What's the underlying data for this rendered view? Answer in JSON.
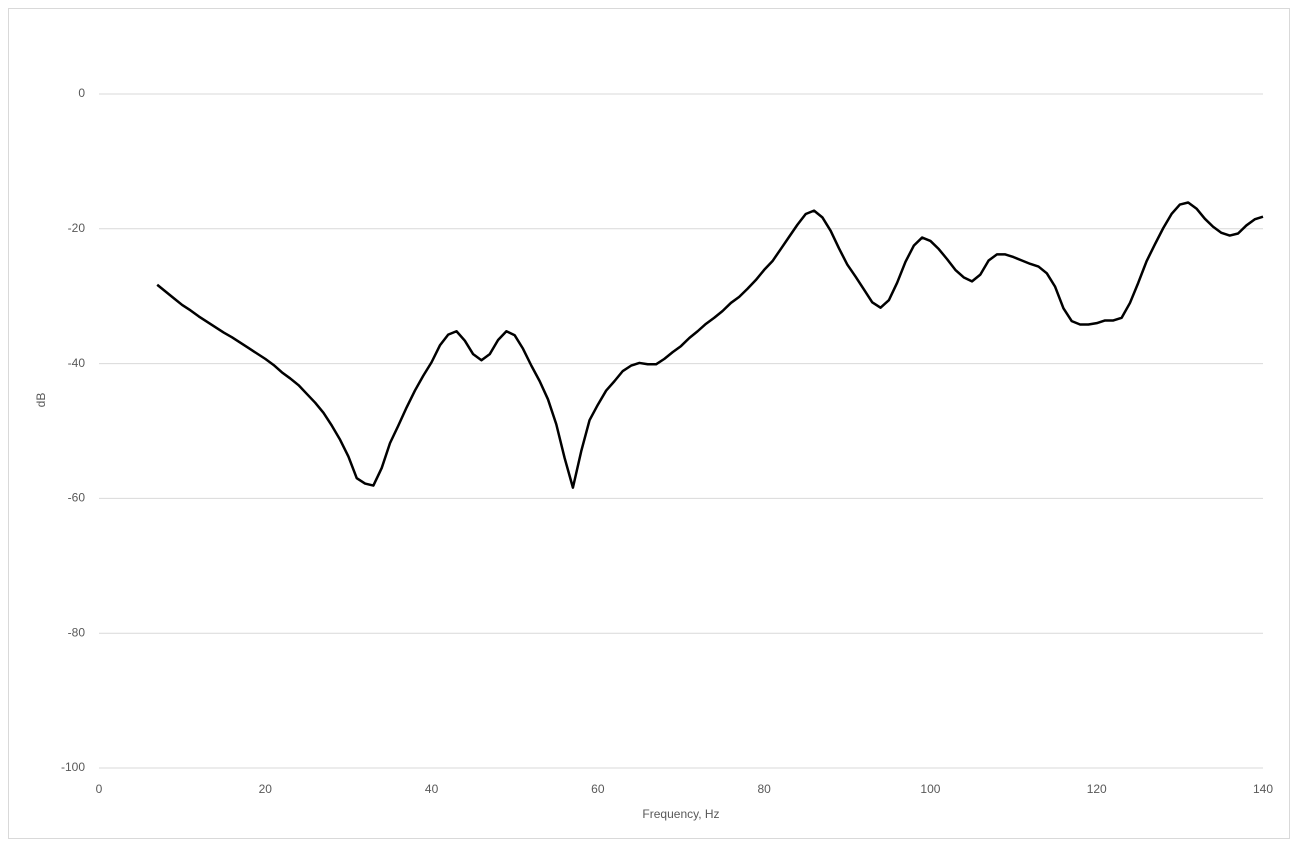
{
  "chart_data": {
    "type": "line",
    "x_label": "Frequency, Hz",
    "y_label": "dB",
    "xlim": [
      0,
      140
    ],
    "xticks": [
      0,
      20,
      40,
      60,
      80,
      100,
      120,
      140
    ],
    "ylim": [
      -100,
      10
    ],
    "yticks": [
      -100,
      -80,
      -60,
      -40,
      -20,
      0
    ],
    "grid": true,
    "x": [
      7,
      8,
      9,
      10,
      11,
      12,
      13,
      14,
      15,
      16,
      17,
      18,
      19,
      20,
      21,
      22,
      23,
      24,
      25,
      26,
      27,
      28,
      29,
      30,
      31,
      32,
      33,
      34,
      35,
      36,
      37,
      38,
      39,
      40,
      41,
      42,
      43,
      44,
      45,
      46,
      47,
      48,
      49,
      50,
      51,
      52,
      53,
      54,
      55,
      56,
      57,
      58,
      59,
      60,
      61,
      62,
      63,
      64,
      65,
      66,
      67,
      68,
      69,
      70,
      71,
      72,
      73,
      74,
      75,
      76,
      77,
      78,
      79,
      80,
      81,
      82,
      83,
      84,
      85,
      86,
      87,
      88,
      89,
      90,
      91,
      92,
      93,
      94,
      95,
      96,
      97,
      98,
      99,
      100,
      101,
      102,
      103,
      104,
      105,
      106,
      107,
      108,
      109,
      110,
      111,
      112,
      113,
      114,
      115,
      116,
      117,
      118,
      119,
      120,
      121,
      122,
      123,
      124,
      125,
      126,
      127,
      128,
      129,
      130,
      131,
      132,
      133,
      134,
      135,
      136,
      137,
      138,
      139,
      140
    ],
    "series": [
      {
        "color": "#000000",
        "values": [
          -28.3,
          -29.3,
          -30.3,
          -31.3,
          -32.1,
          -33,
          -33.8,
          -34.6,
          -35.4,
          -36.1,
          -36.9,
          -37.7,
          -38.5,
          -39.3,
          -40.2,
          -41.3,
          -42.2,
          -43.2,
          -44.5,
          -45.8,
          -47.3,
          -49.2,
          -51.3,
          -53.8,
          -57,
          -57.8,
          -58.1,
          -55.5,
          -51.8,
          -49.2,
          -46.5,
          -44,
          -41.8,
          -39.8,
          -37.3,
          -35.7,
          -35.2,
          -36.6,
          -38.6,
          -39.5,
          -38.6,
          -36.5,
          -35.2,
          -35.8,
          -37.8,
          -40.3,
          -42.6,
          -45.3,
          -49,
          -54,
          -58.4,
          -53,
          -48.4,
          -46.1,
          -44,
          -42.6,
          -41.1,
          -40.3,
          -39.9,
          -40.1,
          -40.1,
          -39.3,
          -38.3,
          -37.4,
          -36.2,
          -35.2,
          -34.1,
          -33.2,
          -32.2,
          -31,
          -30.1,
          -28.9,
          -27.6,
          -26.1,
          -24.8,
          -23,
          -21.2,
          -19.4,
          -17.8,
          -17.3,
          -18.3,
          -20.3,
          -22.9,
          -25.3,
          -27.1,
          -29,
          -30.9,
          -31.7,
          -30.6,
          -28,
          -24.9,
          -22.5,
          -21.3,
          -21.8,
          -23,
          -24.5,
          -26.1,
          -27.2,
          -27.8,
          -26.8,
          -24.7,
          -23.8,
          -23.8,
          -24.2,
          -24.7,
          -25.2,
          -25.6,
          -26.6,
          -28.6,
          -31.8,
          -33.7,
          -34.2,
          -34.2,
          -34,
          -33.6,
          -33.6,
          -33.2,
          -31,
          -28,
          -24.8,
          -22.3,
          -19.9,
          -17.8,
          -16.4,
          -16.1,
          -17,
          -18.5,
          -19.7,
          -20.6,
          -21,
          -20.7,
          -19.5,
          -18.6,
          -18.2
        ]
      }
    ]
  }
}
